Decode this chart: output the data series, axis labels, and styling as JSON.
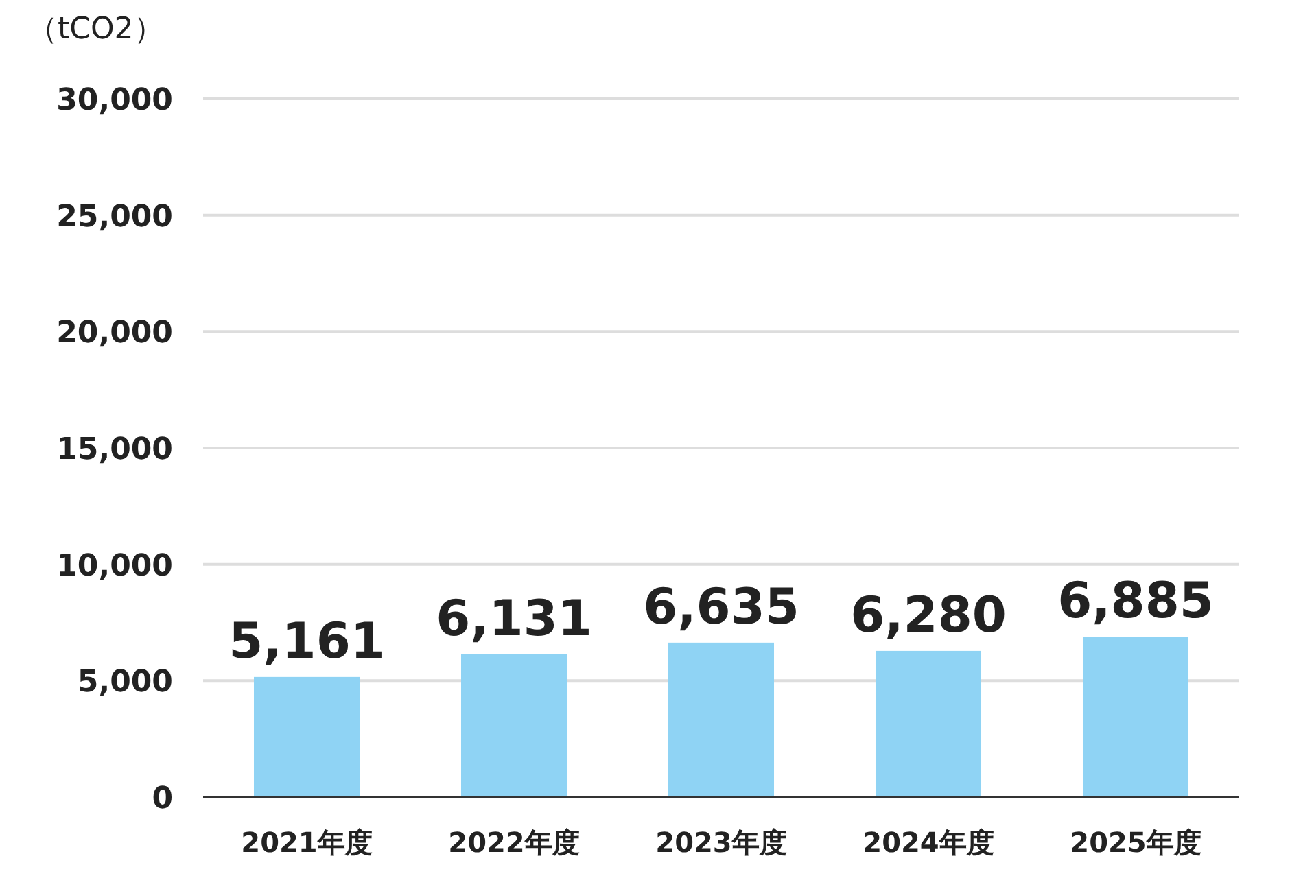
{
  "chart_data": {
    "type": "bar",
    "ylabel": "（tCO2）",
    "categories": [
      "2021年度",
      "2022年度",
      "2023年度",
      "2024年度",
      "2025年度"
    ],
    "values": [
      5161,
      6131,
      6635,
      6280,
      6885
    ],
    "color": "#8fd3f4",
    "ylim": [
      0,
      30000
    ],
    "yticks": [
      {
        "value": 0,
        "label": "0"
      },
      {
        "value": 5000,
        "label": "5,000"
      },
      {
        "value": 10000,
        "label": "10,000"
      },
      {
        "value": 15000,
        "label": "15,000"
      },
      {
        "value": 20000,
        "label": "20,000"
      },
      {
        "value": 25000,
        "label": "25,000"
      },
      {
        "value": 30000,
        "label": "30,000"
      }
    ],
    "value_labels": [
      "5,161",
      "6,131",
      "6,635",
      "6,280",
      "6,885"
    ],
    "grid": "y"
  }
}
